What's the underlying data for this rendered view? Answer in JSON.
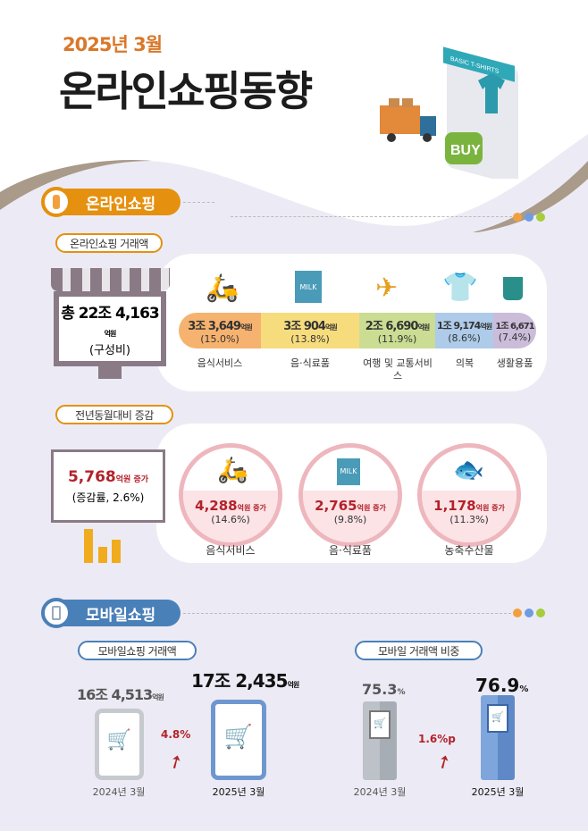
{
  "header": {
    "subtitle": "2025년 3월",
    "title": "온라인쇼핑동향",
    "illustration_text": "BASIC T-SHIRTS",
    "buy_label": "BUY"
  },
  "online": {
    "section_label": "온라인쇼핑",
    "bubble": "온라인쇼핑 거래액",
    "total": {
      "prefix": "총 22조 4,163",
      "unit": "억원",
      "note": "(구성비)"
    },
    "categories": [
      {
        "amount": "3조 3,649",
        "unit": "억원",
        "share": "(15.0%)",
        "label": "음식서비스",
        "color": "#f6b26f",
        "icon": "delivery-scooter-icon"
      },
      {
        "amount": "3조 904",
        "unit": "억원",
        "share": "(13.8%)",
        "label": "음·식료품",
        "color": "#f7dc7e",
        "icon": "milk-bread-icon"
      },
      {
        "amount": "2조 6,690",
        "unit": "억원",
        "share": "(11.9%)",
        "label": "여행 및 교통서비스",
        "color": "#cadd93",
        "icon": "calendar-airplane-icon"
      },
      {
        "amount": "1조 9,174",
        "unit": "억원",
        "share": "(8.6%)",
        "label": "의복",
        "color": "#aecbe9",
        "icon": "tshirt-icon"
      },
      {
        "amount": "1조 6,671",
        "unit": "억원",
        "share": "(7.4%)",
        "label": "생활용품",
        "color": "#cbbcda",
        "icon": "toothbrush-cup-icon"
      }
    ]
  },
  "yoy": {
    "bubble": "전년동월대비 증감",
    "total": {
      "amount": "5,768",
      "unit": "억원 증가",
      "rate": "(증감률, 2.6%)"
    },
    "items": [
      {
        "amount": "4,288",
        "unit": "억원 증가",
        "rate": "(14.6%)",
        "label": "음식서비스",
        "icon": "delivery-scooter-icon"
      },
      {
        "amount": "2,765",
        "unit": "억원 증가",
        "rate": "(9.8%)",
        "label": "음·식료품",
        "icon": "milk-bread-icon"
      },
      {
        "amount": "1,178",
        "unit": "억원 증가",
        "rate": "(11.3%)",
        "label": "농축수산물",
        "icon": "fish-wheat-icon"
      }
    ]
  },
  "mobile": {
    "section_label": "모바일쇼핑",
    "amount": {
      "bubble": "모바일쇼핑 거래액",
      "prev_value": "16조 4,513",
      "prev_unit": "억원",
      "prev_label": "2024년 3월",
      "cur_value": "17조 2,435",
      "cur_unit": "억원",
      "cur_label": "2025년 3월",
      "growth": "4.8%"
    },
    "share": {
      "bubble": "모바일 거래액 비중",
      "prev_value": "75.3",
      "prev_unit": "%",
      "prev_label": "2024년 3월",
      "cur_value": "76.9",
      "cur_unit": "%",
      "cur_label": "2025년 3월",
      "growth": "1.6%p"
    }
  },
  "colors": {
    "orange": "#e5900f",
    "blue": "#4a80b8",
    "red": "#b3222a",
    "dots": [
      "#f2a03d",
      "#6f9be0",
      "#a7cc3c"
    ]
  }
}
